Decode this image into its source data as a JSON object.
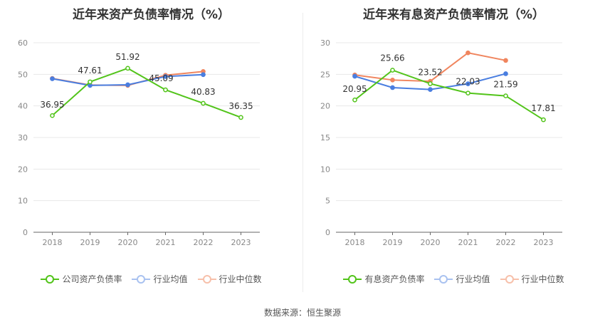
{
  "colors": {
    "green": "#52c41a",
    "blue": "#4a7ee0",
    "orange": "#f0855e",
    "axis": "#666666",
    "grid": "#e8e8e8"
  },
  "source_label": "数据来源：恒生聚源",
  "chart_data": [
    {
      "type": "line",
      "title": "近年来资产负债率情况（%）",
      "categories": [
        "2018",
        "2019",
        "2020",
        "2021",
        "2022",
        "2023"
      ],
      "ylim": [
        0,
        60
      ],
      "yticks": [
        0,
        10,
        20,
        30,
        40,
        50,
        60
      ],
      "grid": true,
      "legend_position": "bottom",
      "series": [
        {
          "name": "公司资产负债率",
          "color": "#52c41a",
          "values": [
            36.95,
            47.61,
            51.92,
            45.09,
            40.83,
            36.35
          ],
          "labels": [
            "36.95",
            "47.61",
            "51.92",
            "45.09",
            "40.83",
            "36.35"
          ]
        },
        {
          "name": "行业均值",
          "color": "#4a7ee0",
          "values": [
            48.6,
            46.5,
            46.7,
            49.3,
            49.9,
            null
          ]
        },
        {
          "name": "行业中位数",
          "color": "#f0855e",
          "values": [
            48.7,
            46.6,
            46.5,
            49.7,
            50.9,
            null
          ]
        }
      ]
    },
    {
      "type": "line",
      "title": "近年来有息资产负债率情况（%）",
      "categories": [
        "2018",
        "2019",
        "2020",
        "2021",
        "2022",
        "2023"
      ],
      "ylim": [
        0,
        30
      ],
      "yticks": [
        0,
        5,
        10,
        15,
        20,
        25,
        30
      ],
      "grid": true,
      "legend_position": "bottom",
      "series": [
        {
          "name": "有息资产负债率",
          "color": "#52c41a",
          "values": [
            20.95,
            25.66,
            23.52,
            22.03,
            21.59,
            17.81
          ],
          "labels": [
            "20.95",
            "25.66",
            "23.52",
            "22.03",
            "21.59",
            "17.81"
          ]
        },
        {
          "name": "行业均值",
          "color": "#4a7ee0",
          "values": [
            24.7,
            22.9,
            22.6,
            23.5,
            25.1,
            null
          ]
        },
        {
          "name": "行业中位数",
          "color": "#f0855e",
          "values": [
            24.9,
            24.1,
            23.9,
            28.4,
            27.2,
            null
          ]
        }
      ]
    }
  ]
}
